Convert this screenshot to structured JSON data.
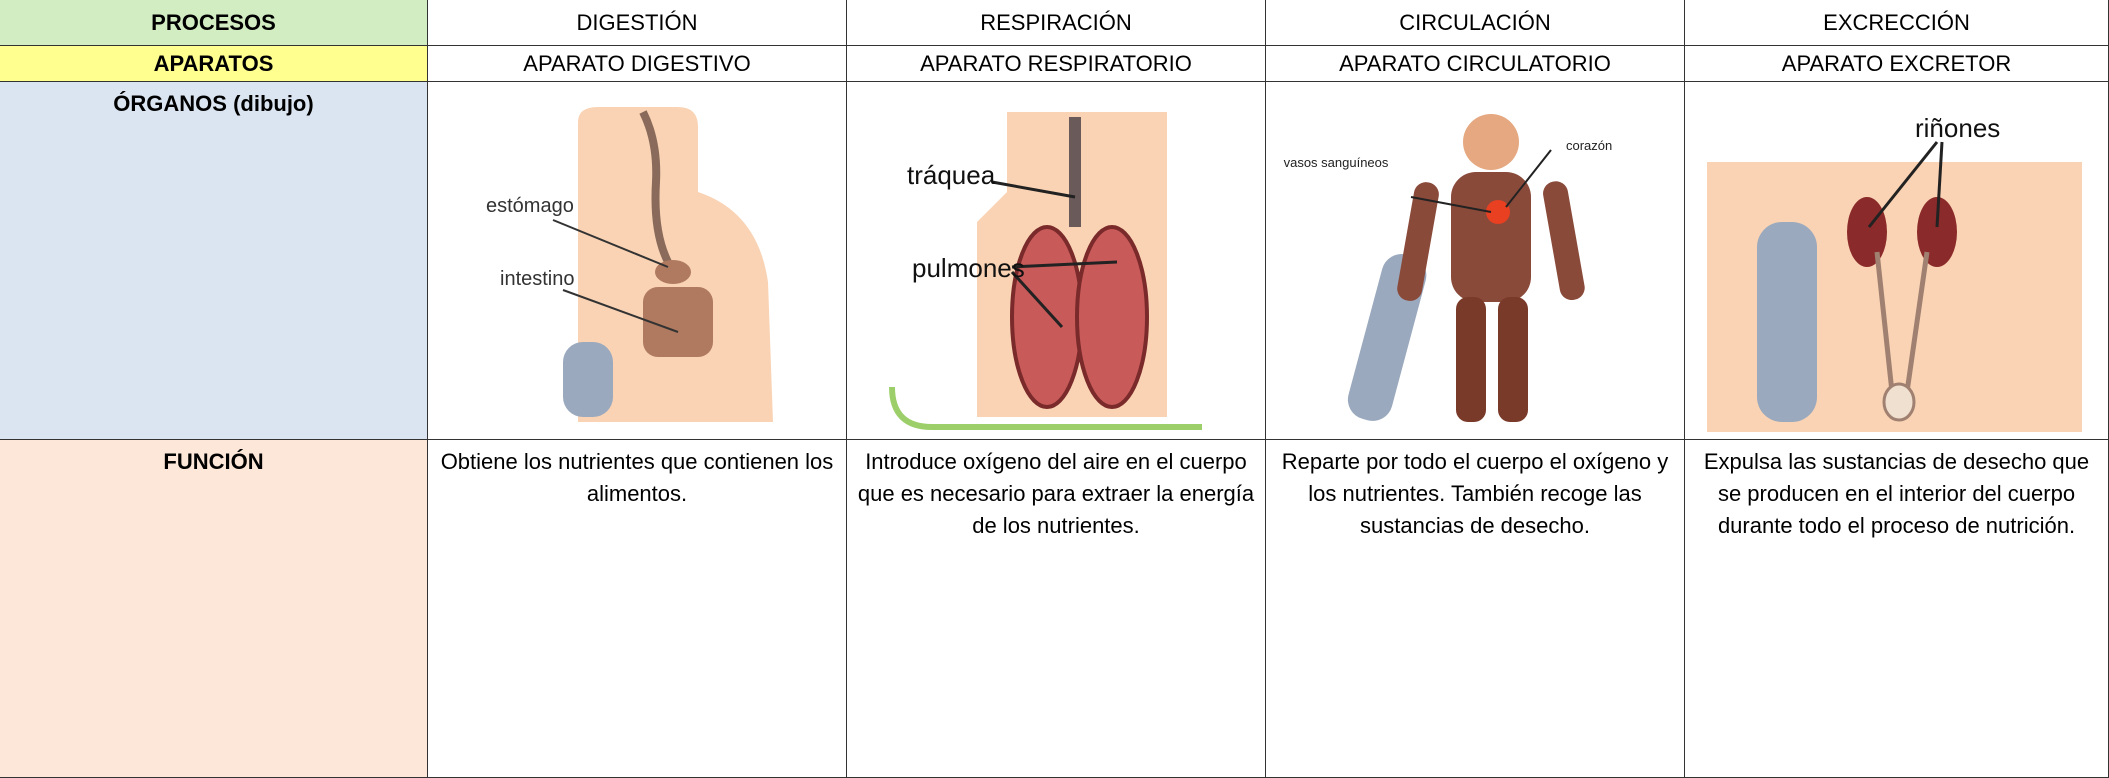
{
  "table": {
    "rows": [
      [
        "PROCESOS",
        "DIGESTIÓN",
        "RESPIRACIÓN",
        "CIRCULACIÓN",
        "EXCRECCIÓN"
      ],
      [
        "APARATOS",
        "APARATO DIGESTIVO",
        "APARATO RESPIRATORIO",
        "APARATO CIRCULATORIO",
        "APARATO EXCRETOR"
      ],
      [
        "ÓRGANOS (dibujo)"
      ],
      [
        "FUNCIÓN",
        "Obtiene los nutrientes que contienen los alimentos.",
        "Introduce oxígeno del aire en el cuerpo que es necesario para extraer la energía de los nutrientes.",
        "Reparte por todo el cuerpo el oxígeno y los nutrientes. También recoge las sustancias de desecho.",
        "Expulsa las sustancias de desecho que se producen en el interior del cuerpo durante todo el proceso de nutrición."
      ]
    ]
  },
  "drawings": [
    {
      "labels": [
        "estómago",
        "intestino"
      ]
    },
    {
      "labels": [
        "tráquea",
        "pulmones"
      ]
    },
    {
      "labels": [
        "vasos sanguíneos",
        "corazón"
      ]
    },
    {
      "labels": [
        "riñones"
      ]
    }
  ]
}
